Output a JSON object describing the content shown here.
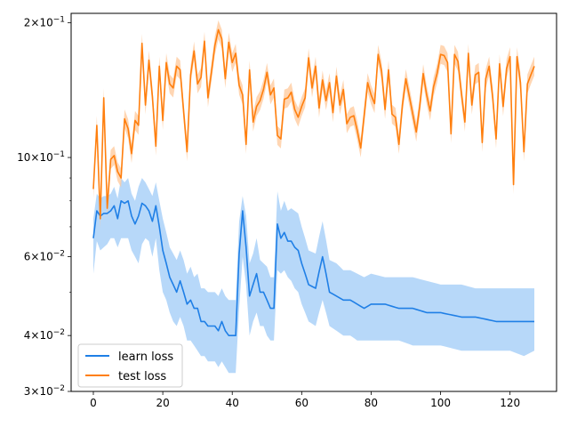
{
  "chart_data": {
    "type": "line",
    "title": "",
    "xlabel": "",
    "ylabel": "",
    "yscale": "log",
    "xlim": [
      -6.4,
      133.4
    ],
    "ylim": [
      0.03,
      0.21
    ],
    "grid": false,
    "legend_position": "lower-left",
    "x_ticks": [
      0,
      20,
      40,
      60,
      80,
      100,
      120
    ],
    "x_tick_labels": [
      "0",
      "20",
      "40",
      "60",
      "80",
      "100",
      "120"
    ],
    "y_ticks": [
      {
        "value": 0.2,
        "mant": "2",
        "exp": "−1"
      },
      {
        "value": 0.1,
        "mant": "10",
        "exp": "−1"
      },
      {
        "value": 0.06,
        "mant": "6",
        "exp": "−2"
      },
      {
        "value": 0.04,
        "mant": "4",
        "exp": "−2"
      },
      {
        "value": 0.03,
        "mant": "3",
        "exp": "−2"
      }
    ],
    "y_tick_sep": "×",
    "series": [
      {
        "name": "learn loss",
        "color": "#1f7fe6",
        "band_color": "#9fcbf7",
        "band_note": "shaded band = min/max spread across runs",
        "anchors": {
          "x": [
            0,
            1,
            2,
            3,
            4,
            5,
            6,
            7,
            8,
            9,
            10,
            11,
            12,
            13,
            14,
            15,
            16,
            17,
            18,
            19,
            20,
            21,
            22,
            23,
            24,
            25,
            26,
            27,
            28,
            29,
            30,
            31,
            32,
            33,
            34,
            35,
            36,
            37,
            38,
            39,
            40,
            41,
            42,
            43,
            44,
            45,
            46,
            47,
            48,
            49,
            50,
            51,
            52,
            53,
            54,
            55,
            56,
            57,
            58,
            59,
            60,
            62,
            64,
            66,
            68,
            70,
            72,
            74,
            76,
            78,
            80,
            84,
            88,
            92,
            96,
            100,
            106,
            110,
            116,
            120,
            124,
            127
          ],
          "y": [
            0.066,
            0.076,
            0.074,
            0.075,
            0.075,
            0.076,
            0.078,
            0.073,
            0.08,
            0.079,
            0.08,
            0.074,
            0.071,
            0.074,
            0.079,
            0.078,
            0.076,
            0.072,
            0.078,
            0.07,
            0.062,
            0.058,
            0.054,
            0.052,
            0.05,
            0.053,
            0.05,
            0.047,
            0.048,
            0.046,
            0.046,
            0.043,
            0.043,
            0.042,
            0.042,
            0.042,
            0.041,
            0.043,
            0.041,
            0.04,
            0.04,
            0.04,
            0.061,
            0.076,
            0.063,
            0.049,
            0.052,
            0.055,
            0.05,
            0.05,
            0.048,
            0.046,
            0.046,
            0.071,
            0.066,
            0.068,
            0.065,
            0.065,
            0.063,
            0.062,
            0.058,
            0.052,
            0.051,
            0.06,
            0.05,
            0.049,
            0.048,
            0.048,
            0.047,
            0.046,
            0.047,
            0.047,
            0.046,
            0.046,
            0.045,
            0.045,
            0.044,
            0.044,
            0.043,
            0.043,
            0.043,
            0.043
          ],
          "lower": [
            0.055,
            0.065,
            0.062,
            0.063,
            0.064,
            0.066,
            0.066,
            0.063,
            0.066,
            0.066,
            0.066,
            0.062,
            0.06,
            0.058,
            0.064,
            0.066,
            0.065,
            0.06,
            0.066,
            0.056,
            0.05,
            0.048,
            0.045,
            0.043,
            0.042,
            0.044,
            0.042,
            0.039,
            0.039,
            0.038,
            0.037,
            0.036,
            0.036,
            0.035,
            0.035,
            0.035,
            0.034,
            0.035,
            0.034,
            0.033,
            0.033,
            0.033,
            0.046,
            0.06,
            0.052,
            0.04,
            0.043,
            0.045,
            0.042,
            0.042,
            0.04,
            0.039,
            0.039,
            0.056,
            0.055,
            0.056,
            0.054,
            0.053,
            0.051,
            0.05,
            0.047,
            0.043,
            0.042,
            0.048,
            0.042,
            0.041,
            0.04,
            0.04,
            0.039,
            0.039,
            0.039,
            0.039,
            0.039,
            0.038,
            0.038,
            0.038,
            0.037,
            0.037,
            0.037,
            0.037,
            0.036,
            0.037
          ],
          "upper": [
            0.073,
            0.083,
            0.081,
            0.082,
            0.082,
            0.083,
            0.086,
            0.081,
            0.09,
            0.088,
            0.09,
            0.083,
            0.08,
            0.086,
            0.09,
            0.088,
            0.085,
            0.082,
            0.088,
            0.08,
            0.073,
            0.068,
            0.063,
            0.061,
            0.059,
            0.062,
            0.059,
            0.055,
            0.057,
            0.054,
            0.055,
            0.051,
            0.051,
            0.05,
            0.05,
            0.05,
            0.049,
            0.051,
            0.049,
            0.048,
            0.048,
            0.048,
            0.072,
            0.082,
            0.074,
            0.058,
            0.061,
            0.066,
            0.059,
            0.058,
            0.057,
            0.054,
            0.054,
            0.084,
            0.076,
            0.08,
            0.076,
            0.077,
            0.076,
            0.075,
            0.07,
            0.062,
            0.061,
            0.072,
            0.059,
            0.058,
            0.056,
            0.056,
            0.055,
            0.054,
            0.055,
            0.054,
            0.054,
            0.054,
            0.053,
            0.052,
            0.052,
            0.051,
            0.051,
            0.051,
            0.051,
            0.051
          ]
        }
      },
      {
        "name": "test loss",
        "color": "#ff7f0e",
        "band_color": "#ffc899",
        "band_note": "shaded band = min/max spread across runs",
        "band_half_width_ratio": 1.05,
        "values": [
          0.085,
          0.118,
          0.073,
          0.136,
          0.077,
          0.099,
          0.101,
          0.093,
          0.09,
          0.122,
          0.116,
          0.102,
          0.121,
          0.118,
          0.18,
          0.131,
          0.165,
          0.137,
          0.106,
          0.16,
          0.121,
          0.163,
          0.146,
          0.143,
          0.16,
          0.157,
          0.127,
          0.103,
          0.153,
          0.173,
          0.146,
          0.151,
          0.182,
          0.136,
          0.155,
          0.178,
          0.193,
          0.184,
          0.15,
          0.181,
          0.163,
          0.171,
          0.145,
          0.138,
          0.107,
          0.157,
          0.12,
          0.13,
          0.134,
          0.142,
          0.155,
          0.138,
          0.143,
          0.112,
          0.11,
          0.135,
          0.136,
          0.14,
          0.128,
          0.123,
          0.13,
          0.136,
          0.167,
          0.143,
          0.16,
          0.129,
          0.149,
          0.134,
          0.147,
          0.126,
          0.152,
          0.131,
          0.142,
          0.119,
          0.123,
          0.124,
          0.115,
          0.105,
          0.124,
          0.147,
          0.138,
          0.132,
          0.17,
          0.156,
          0.128,
          0.157,
          0.125,
          0.123,
          0.107,
          0.131,
          0.15,
          0.137,
          0.125,
          0.114,
          0.13,
          0.154,
          0.138,
          0.127,
          0.144,
          0.154,
          0.17,
          0.169,
          0.163,
          0.113,
          0.17,
          0.164,
          0.139,
          0.12,
          0.171,
          0.131,
          0.153,
          0.155,
          0.108,
          0.15,
          0.16,
          0.137,
          0.11,
          0.162,
          0.13,
          0.158,
          0.168,
          0.087,
          0.168,
          0.147,
          0.103,
          0.146,
          0.153,
          0.16
        ]
      }
    ]
  }
}
